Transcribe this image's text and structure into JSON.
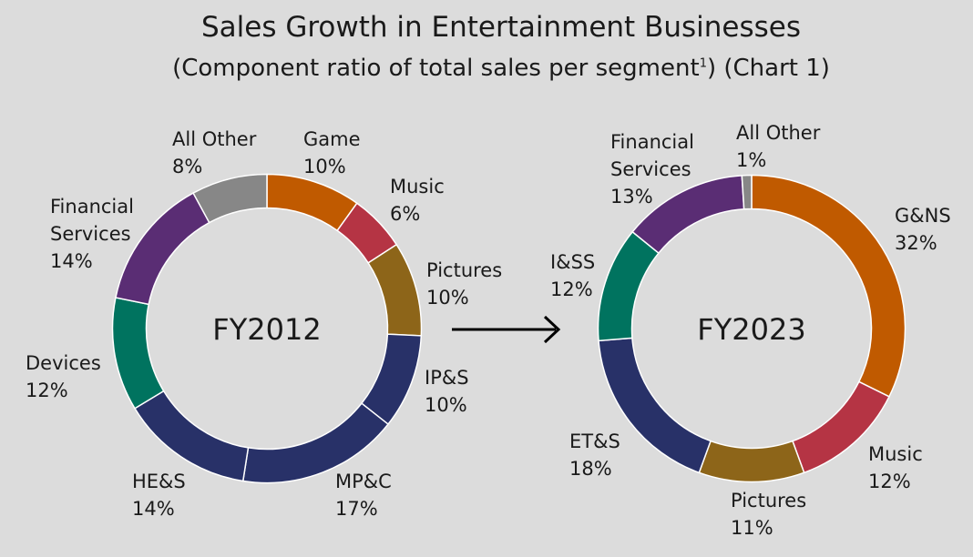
{
  "title": "Sales Growth in Entertainment Businesses",
  "subtitle": {
    "main": "(Component ratio of total sales per segment",
    "footnote_mark": "1",
    "tail": ") (Chart 1)"
  },
  "chart_data": [
    {
      "type": "pie",
      "center_label": "FY2012",
      "slices": [
        {
          "label": [
            "Game"
          ],
          "pct_label": "10%",
          "value": 10,
          "color": "#c05a00"
        },
        {
          "label": [
            "Music"
          ],
          "pct_label": "6%",
          "value": 6,
          "color": "#b53444"
        },
        {
          "label": [
            "Pictures"
          ],
          "pct_label": "10%",
          "value": 10,
          "color": "#8d6519"
        },
        {
          "label": [
            "IP&S"
          ],
          "pct_label": "10%",
          "value": 10,
          "color": "#283168"
        },
        {
          "label": [
            "MP&C"
          ],
          "pct_label": "17%",
          "value": 17,
          "color": "#283168"
        },
        {
          "label": [
            "HE&S"
          ],
          "pct_label": "14%",
          "value": 14,
          "color": "#283168"
        },
        {
          "label": [
            "Devices"
          ],
          "pct_label": "12%",
          "value": 12,
          "color": "#00735f"
        },
        {
          "label": [
            "Financial",
            "Services"
          ],
          "pct_label": "14%",
          "value": 14,
          "color": "#5a2d74"
        },
        {
          "label": [
            "All Other"
          ],
          "pct_label": "8%",
          "value": 8,
          "color": "#878787"
        }
      ]
    },
    {
      "type": "pie",
      "center_label": "FY2023",
      "slices": [
        {
          "label": [
            "G&NS"
          ],
          "pct_label": "32%",
          "value": 32,
          "color": "#c05a00"
        },
        {
          "label": [
            "Music"
          ],
          "pct_label": "12%",
          "value": 12,
          "color": "#b53444"
        },
        {
          "label": [
            "Pictures"
          ],
          "pct_label": "11%",
          "value": 11,
          "color": "#8d6519"
        },
        {
          "label": [
            "ET&S"
          ],
          "pct_label": "18%",
          "value": 18,
          "color": "#283168"
        },
        {
          "label": [
            "I&SS"
          ],
          "pct_label": "12%",
          "value": 12,
          "color": "#00735f"
        },
        {
          "label": [
            "Financial",
            "Services"
          ],
          "pct_label": "13%",
          "value": 13,
          "color": "#5a2d74"
        },
        {
          "label": [
            "All Other"
          ],
          "pct_label": "1%",
          "value": 1,
          "color": "#878787"
        }
      ]
    }
  ]
}
